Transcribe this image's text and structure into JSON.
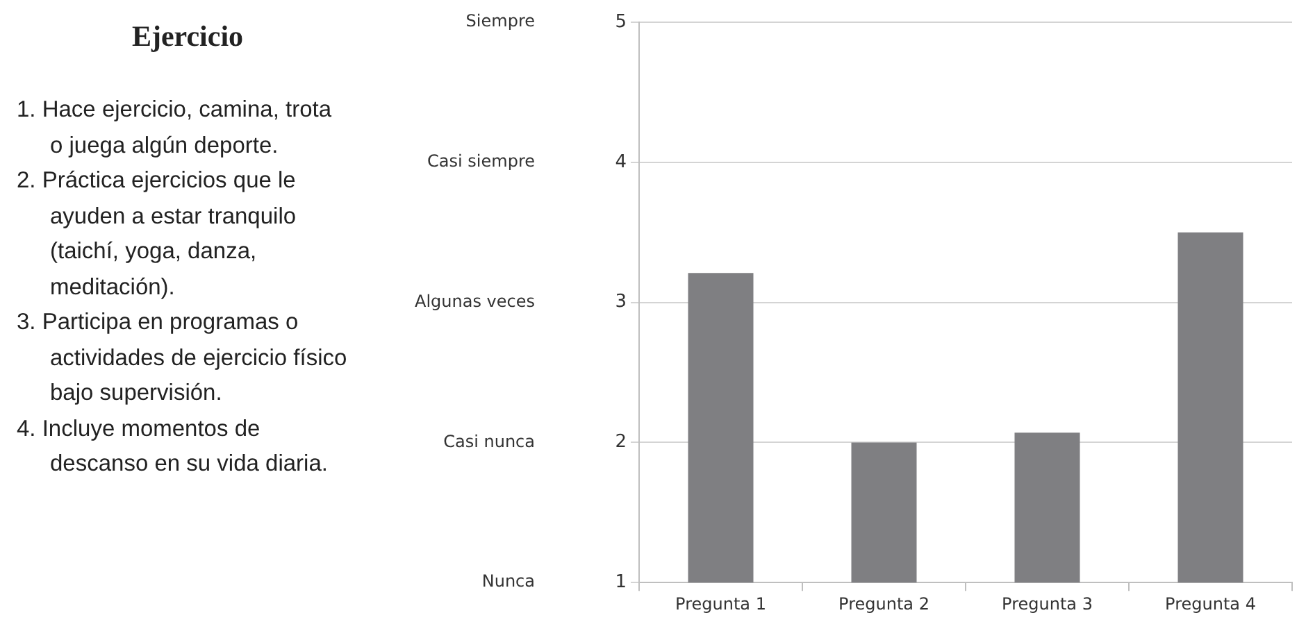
{
  "chart_data": {
    "type": "bar",
    "title": "Ejercicio",
    "annotations": [
      "1. Hace ejercicio, camina, trota o juega algún deporte.",
      "2. Práctica ejercicios que le ayuden a estar tranquilo (taichí, yoga, danza, meditación).",
      "3. Participa en programas o actividades de ejercicio físico bajo supervisión.",
      "4. Incluye momentos de descanso en su vida diaria.",
      "Siempre",
      "Casi siempre",
      "Algunas veces",
      "Casi nunca",
      "Nunca"
    ],
    "categories": [
      "Pregunta 1",
      "Pregunta 2",
      "Pregunta 3",
      "Pregunta 4"
    ],
    "values": [
      3.21,
      2.0,
      2.07,
      3.5
    ],
    "color": "#7f7f82",
    "ylim": [
      1,
      5
    ],
    "yticks": [
      1,
      2,
      3,
      4,
      5
    ],
    "grid": "y",
    "legend": false
  }
}
